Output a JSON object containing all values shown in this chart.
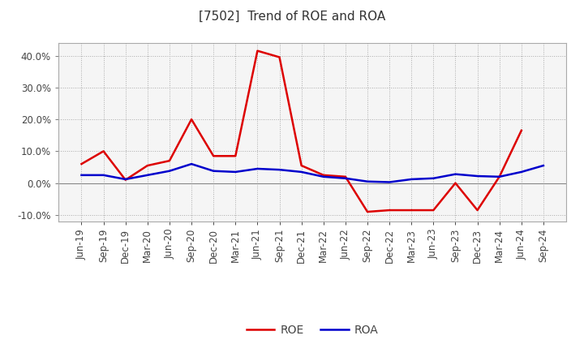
{
  "title": "[7502]  Trend of ROE and ROA",
  "x_labels": [
    "Jun-19",
    "Sep-19",
    "Dec-19",
    "Mar-20",
    "Jun-20",
    "Sep-20",
    "Dec-20",
    "Mar-21",
    "Jun-21",
    "Sep-21",
    "Dec-21",
    "Mar-22",
    "Jun-22",
    "Sep-22",
    "Dec-22",
    "Mar-23",
    "Jun-23",
    "Sep-23",
    "Dec-23",
    "Mar-24",
    "Jun-24",
    "Sep-24"
  ],
  "roe": [
    6.0,
    10.0,
    1.0,
    5.5,
    7.0,
    20.0,
    8.5,
    8.5,
    41.5,
    39.5,
    5.5,
    2.5,
    2.0,
    -9.0,
    -8.5,
    -8.5,
    -8.5,
    0.0,
    -8.5,
    2.0,
    16.5,
    null
  ],
  "roa": [
    2.5,
    2.5,
    1.2,
    2.5,
    3.8,
    6.0,
    3.8,
    3.5,
    4.5,
    4.2,
    3.5,
    2.0,
    1.5,
    0.5,
    0.3,
    1.2,
    1.5,
    2.8,
    2.2,
    2.0,
    3.5,
    5.5
  ],
  "roe_color": "#dd0000",
  "roa_color": "#0000cc",
  "ylim": [
    -12,
    44
  ],
  "yticks": [
    -10,
    0,
    10,
    20,
    30,
    40
  ],
  "background_color": "#ffffff",
  "plot_bg_color": "#f5f5f5",
  "grid_color": "#aaaaaa",
  "title_fontsize": 11,
  "axis_fontsize": 8.5,
  "legend_fontsize": 10,
  "title_color": "#333333",
  "tick_color": "#444444"
}
